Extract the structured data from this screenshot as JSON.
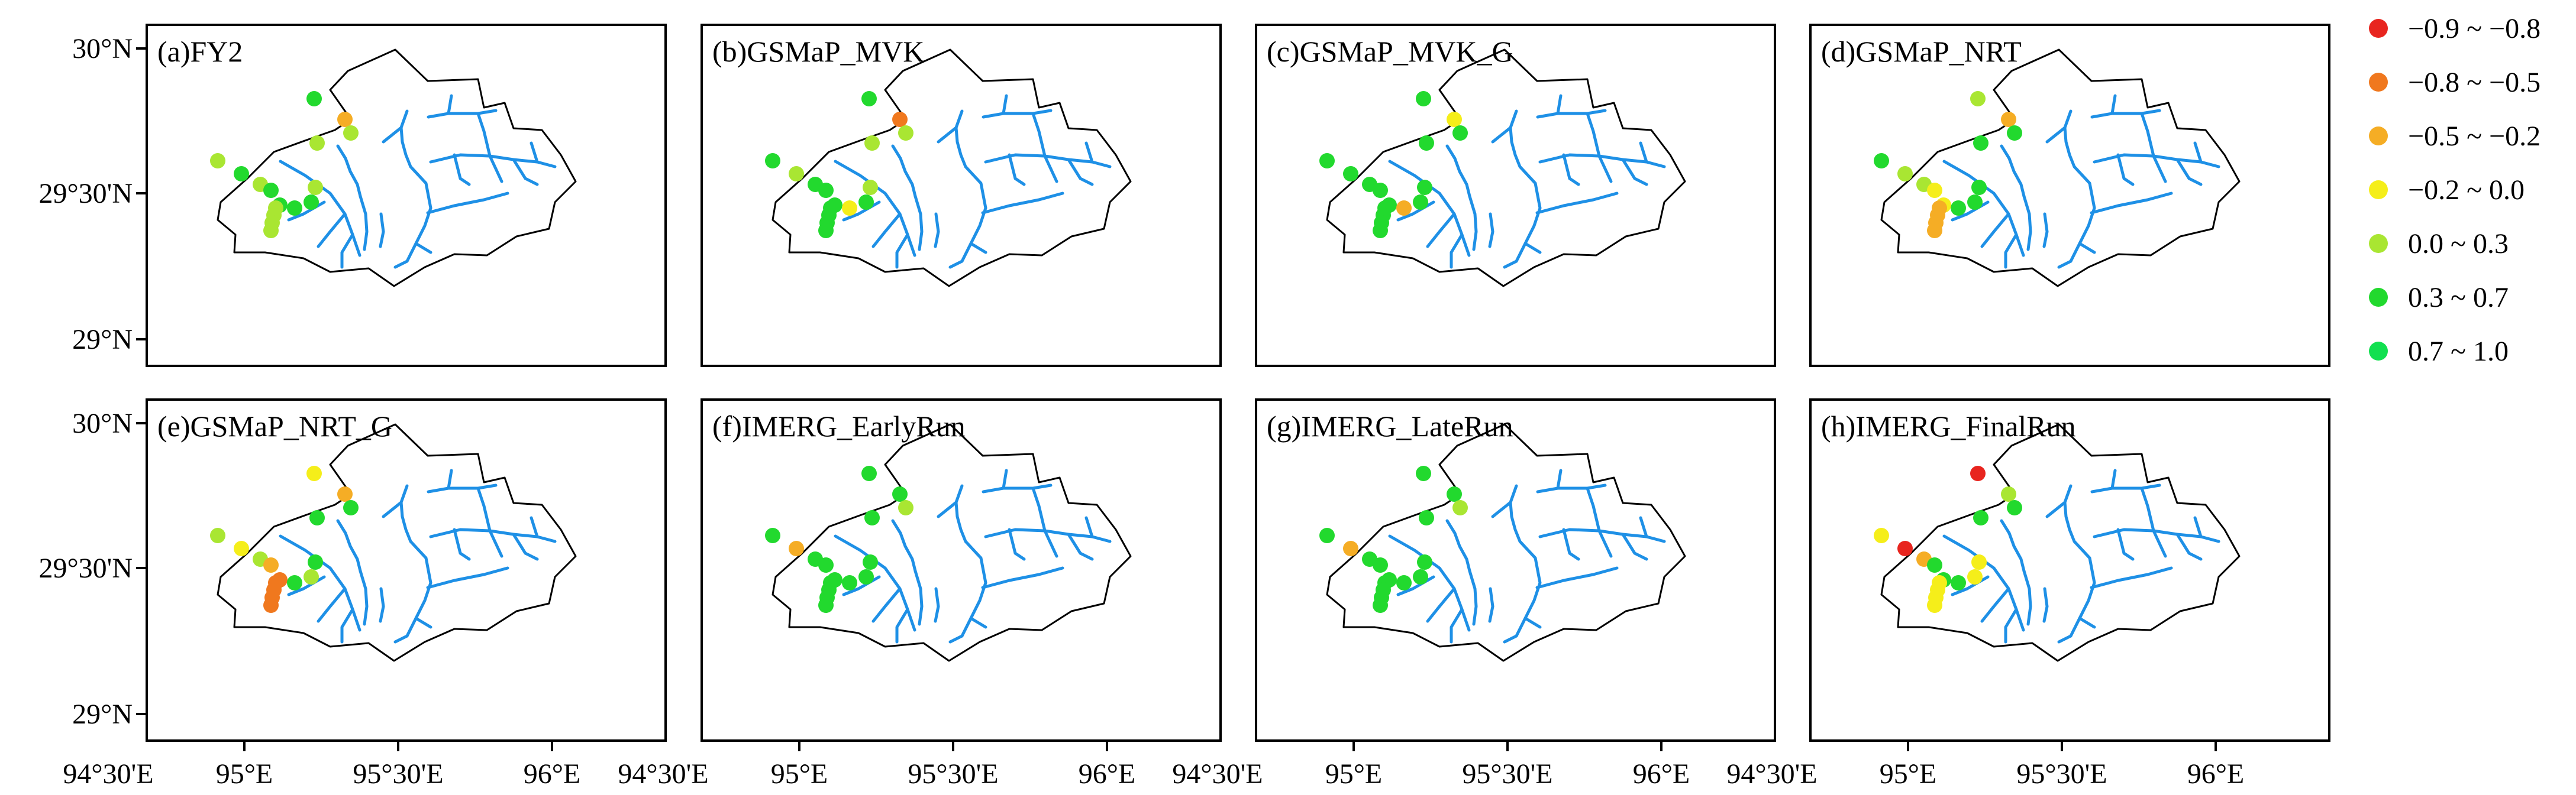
{
  "figure": {
    "panels": [
      {
        "id": "a",
        "title": "(a)FY2",
        "stations": [
          "0.0 ~ 0.3",
          "0.3 ~ 0.7",
          "0.0 ~ 0.3",
          "0.3 ~ 0.7",
          "0.3 ~ 0.7",
          "0.0 ~ 0.3",
          "0.0 ~ 0.3",
          "0.0 ~ 0.3",
          "0.0 ~ 0.3",
          "0.3 ~ 0.7",
          "0.3 ~ 0.7",
          "0.0 ~ 0.3",
          "0.0 ~ 0.3",
          "0.3 ~ 0.7",
          "−0.5 ~ −0.2",
          "0.0 ~ 0.3"
        ]
      },
      {
        "id": "b",
        "title": "(b)GSMaP_MVK",
        "stations": [
          "0.3 ~ 0.7",
          "0.0 ~ 0.3",
          "0.3 ~ 0.7",
          "0.3 ~ 0.7",
          "0.3 ~ 0.7",
          "0.3 ~ 0.7",
          "0.3 ~ 0.7",
          "0.3 ~ 0.7",
          "0.3 ~ 0.7",
          "−0.2 ~ 0.0",
          "0.3 ~ 0.7",
          "0.0 ~ 0.3",
          "0.0 ~ 0.3",
          "0.3 ~ 0.7",
          "−0.8 ~ −0.5",
          "0.0 ~ 0.3"
        ]
      },
      {
        "id": "c",
        "title": "(c)GSMaP_MVK_G",
        "stations": [
          "0.3 ~ 0.7",
          "0.3 ~ 0.7",
          "0.3 ~ 0.7",
          "0.3 ~ 0.7",
          "0.3 ~ 0.7",
          "0.3 ~ 0.7",
          "0.3 ~ 0.7",
          "0.3 ~ 0.7",
          "0.3 ~ 0.7",
          "−0.5 ~ −0.2",
          "0.3 ~ 0.7",
          "0.3 ~ 0.7",
          "0.3 ~ 0.7",
          "0.3 ~ 0.7",
          "−0.2 ~ 0.0",
          "0.3 ~ 0.7"
        ]
      },
      {
        "id": "d",
        "title": "(d)GSMaP_NRT",
        "stations": [
          "0.3 ~ 0.7",
          "0.0 ~ 0.3",
          "0.0 ~ 0.3",
          "−0.2 ~ 0.0",
          "−0.2 ~ 0.0",
          "−0.5 ~ −0.2",
          "−0.5 ~ −0.2",
          "−0.5 ~ −0.2",
          "−0.5 ~ −0.2",
          "0.3 ~ 0.7",
          "0.3 ~ 0.7",
          "0.3 ~ 0.7",
          "0.3 ~ 0.7",
          "0.0 ~ 0.3",
          "−0.5 ~ −0.2",
          "0.3 ~ 0.7"
        ]
      },
      {
        "id": "e",
        "title": "(e)GSMaP_NRT_G",
        "stations": [
          "0.0 ~ 0.3",
          "−0.2 ~ 0.0",
          "0.0 ~ 0.3",
          "−0.5 ~ −0.2",
          "−0.8 ~ −0.5",
          "−0.8 ~ −0.5",
          "−0.8 ~ −0.5",
          "−0.8 ~ −0.5",
          "−0.8 ~ −0.5",
          "0.3 ~ 0.7",
          "0.0 ~ 0.3",
          "0.3 ~ 0.7",
          "0.3 ~ 0.7",
          "−0.2 ~ 0.0",
          "−0.5 ~ −0.2",
          "0.3 ~ 0.7"
        ]
      },
      {
        "id": "f",
        "title": "(f)IMERG_EarlyRun",
        "stations": [
          "0.3 ~ 0.7",
          "−0.5 ~ −0.2",
          "0.3 ~ 0.7",
          "0.3 ~ 0.7",
          "0.3 ~ 0.7",
          "0.3 ~ 0.7",
          "0.3 ~ 0.7",
          "0.3 ~ 0.7",
          "0.3 ~ 0.7",
          "0.3 ~ 0.7",
          "0.3 ~ 0.7",
          "0.3 ~ 0.7",
          "0.3 ~ 0.7",
          "0.3 ~ 0.7",
          "0.3 ~ 0.7",
          "0.0 ~ 0.3"
        ]
      },
      {
        "id": "g",
        "title": "(g)IMERG_LateRun",
        "stations": [
          "0.3 ~ 0.7",
          "−0.5 ~ −0.2",
          "0.3 ~ 0.7",
          "0.3 ~ 0.7",
          "0.3 ~ 0.7",
          "0.3 ~ 0.7",
          "0.3 ~ 0.7",
          "0.3 ~ 0.7",
          "0.3 ~ 0.7",
          "0.3 ~ 0.7",
          "0.3 ~ 0.7",
          "0.3 ~ 0.7",
          "0.3 ~ 0.7",
          "0.3 ~ 0.7",
          "0.3 ~ 0.7",
          "0.0 ~ 0.3"
        ]
      },
      {
        "id": "h",
        "title": "(h)IMERG_FinalRun",
        "stations": [
          "−0.2 ~ 0.0",
          "−0.9 ~ −0.8",
          "−0.5 ~ −0.2",
          "0.3 ~ 0.7",
          "0.3 ~ 0.7",
          "−0.2 ~ 0.0",
          "−0.2 ~ 0.0",
          "−0.2 ~ 0.0",
          "−0.2 ~ 0.0",
          "0.3 ~ 0.7",
          "−0.2 ~ 0.0",
          "−0.2 ~ 0.0",
          "0.3 ~ 0.7",
          "−0.9 ~ −0.8",
          "0.0 ~ 0.3",
          "0.3 ~ 0.7"
        ]
      }
    ],
    "lat_labels": [
      "30°N",
      "29°30'N",
      "29°N"
    ],
    "lon_labels": [
      "94°30'E",
      "95°E",
      "95°30'E",
      "96°E"
    ],
    "legend": [
      {
        "label": "−0.9 ~ −0.8",
        "color": "#e8251f"
      },
      {
        "label": "−0.8 ~ −0.5",
        "color": "#f0781e"
      },
      {
        "label": "−0.5 ~ −0.2",
        "color": "#f5ad25"
      },
      {
        "label": "−0.2 ~ 0.0",
        "color": "#f5ee1a"
      },
      {
        "label": "0.0 ~ 0.3",
        "color": "#a9e632"
      },
      {
        "label": "0.3 ~ 0.7",
        "color": "#22d92e"
      },
      {
        "label": "0.7 ~ 1.0",
        "color": "#12e050"
      }
    ],
    "colors": {
      "river": "#1e90e6",
      "frame": "#000000"
    }
  }
}
